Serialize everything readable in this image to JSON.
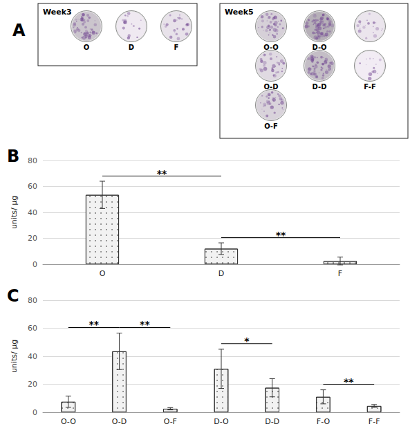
{
  "panel_a": {
    "label": "A",
    "groups": [
      {
        "title": "Week3",
        "rows": [
          [
            "O",
            "D",
            "F"
          ]
        ]
      },
      {
        "title": "Week5",
        "rows": [
          [
            "O-O",
            "D-O",
            null
          ],
          [
            "O-D",
            "D-D",
            "F-F"
          ],
          [
            "O-F"
          ]
        ]
      }
    ]
  },
  "chart_data": [
    {
      "panel": "B",
      "type": "bar",
      "categories": [
        "O",
        "D",
        "F"
      ],
      "values": [
        53.5,
        12,
        2.5
      ],
      "errors": [
        10.5,
        4.5,
        3
      ],
      "y_label": "units/ µg",
      "ylim": [
        0,
        80
      ],
      "yticks": [
        0,
        20,
        40,
        60,
        80
      ],
      "grid": true,
      "color": "#f2f2f2",
      "annotations": [
        {
          "from": "O",
          "to": "D",
          "text": "**"
        },
        {
          "from": "D",
          "to": "F",
          "text": "**"
        }
      ]
    },
    {
      "panel": "C",
      "type": "bar",
      "categories": [
        "O-O",
        "O-D",
        "O-F",
        "D-O",
        "D-D",
        "F-O",
        "F-F"
      ],
      "values": [
        7.5,
        43.5,
        2.5,
        31,
        17.5,
        11,
        4.5
      ],
      "errors": [
        4,
        13,
        0.8,
        14,
        6.5,
        5,
        1
      ],
      "y_label": "units/ µg",
      "ylim": [
        0,
        80
      ],
      "yticks": [
        0,
        20,
        40,
        60,
        80
      ],
      "grid": true,
      "color": "#f2f2f2",
      "annotations": [
        {
          "from": "O-O",
          "to": "O-D",
          "text": "**"
        },
        {
          "from": "O-D",
          "to": "O-F",
          "text": "**"
        },
        {
          "from": "D-O",
          "to": "D-D",
          "text": "*"
        },
        {
          "from": "F-O",
          "to": "F-F",
          "text": "**"
        }
      ]
    }
  ]
}
